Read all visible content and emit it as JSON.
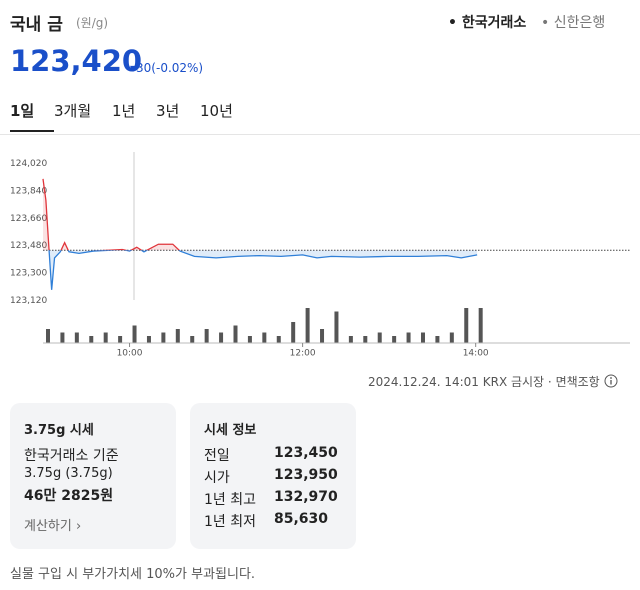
{
  "header": {
    "title": "국내 금",
    "unit": "(원/g)",
    "sources": [
      "한국거래소",
      "신한은행"
    ]
  },
  "price": {
    "value": "123,420",
    "change": "30(-0.02%)"
  },
  "tabs": [
    "1일",
    "3개월",
    "1년",
    "3년",
    "10년"
  ],
  "chart_data": {
    "type": "line",
    "color_up": "#e0353b",
    "color_down": "#2f7fd8",
    "reference": 123450,
    "x": [
      "09:00",
      "09:02",
      "09:04",
      "09:06",
      "09:08",
      "09:12",
      "09:15",
      "09:18",
      "09:25",
      "09:35",
      "09:45",
      "09:55",
      "10:00",
      "10:05",
      "10:10",
      "10:20",
      "10:30",
      "10:35",
      "10:45",
      "11:00",
      "11:15",
      "11:30",
      "11:45",
      "12:00",
      "12:10",
      "12:20",
      "12:40",
      "13:00",
      "13:20",
      "13:40",
      "13:50",
      "14:01"
    ],
    "values": [
      123920,
      123780,
      123480,
      123190,
      123400,
      123440,
      123500,
      123440,
      123430,
      123445,
      123450,
      123455,
      123445,
      123470,
      123440,
      123490,
      123490,
      123445,
      123410,
      123400,
      123410,
      123415,
      123410,
      123420,
      123400,
      123410,
      123405,
      123410,
      123410,
      123415,
      123400,
      123420
    ],
    "xlim": [
      "09:00",
      "15:47"
    ],
    "xticks": [
      "10:00",
      "12:00",
      "14:00"
    ],
    "ylim": [
      123090,
      124110
    ],
    "yticks": [
      {
        "value": 124020,
        "label": "124,020"
      },
      {
        "value": 123840,
        "label": "123,840"
      },
      {
        "value": 123660,
        "label": "123,660"
      },
      {
        "value": 123480,
        "label": "123,480"
      },
      {
        "value": 123300,
        "label": "123,300"
      },
      {
        "value": 123120,
        "label": "123,120"
      }
    ],
    "volume": {
      "color": "#555555",
      "ylim": [
        0,
        10
      ],
      "x": [
        "09:00",
        "09:10",
        "09:20",
        "09:30",
        "09:40",
        "09:50",
        "10:00",
        "10:10",
        "10:20",
        "10:30",
        "10:40",
        "10:50",
        "11:00",
        "11:10",
        "11:20",
        "11:30",
        "11:40",
        "11:50",
        "12:00",
        "12:10",
        "12:20",
        "12:30",
        "12:40",
        "12:50",
        "13:00",
        "13:10",
        "13:20",
        "13:30",
        "13:40",
        "13:50",
        "14:00"
      ],
      "values": [
        4,
        3,
        3,
        2,
        3,
        2,
        5,
        2,
        3,
        4,
        2,
        4,
        3,
        5,
        2,
        3,
        2,
        6,
        10,
        4,
        9,
        2,
        2,
        3,
        2,
        3,
        3,
        2,
        3,
        10,
        10
      ]
    }
  },
  "footer": {
    "timestamp": "2024.12.24. 14:01 KRX 금시장",
    "disclaimer": "면책조항"
  },
  "card_gram": {
    "title": "3.75g 시세",
    "basis": "한국거래소 기준",
    "weight": "3.75g (3.75g)",
    "price": "46만 2825원",
    "link": "계산하기"
  },
  "info": {
    "title": "시세 정보",
    "rows": [
      [
        "전일",
        "123,450"
      ],
      [
        "시가",
        "123,950"
      ],
      [
        "1년 최고",
        "132,970"
      ],
      [
        "1년 최저",
        "85,630"
      ]
    ]
  },
  "note": "실물 구입 시 부가가치세 10%가 부과됩니다."
}
